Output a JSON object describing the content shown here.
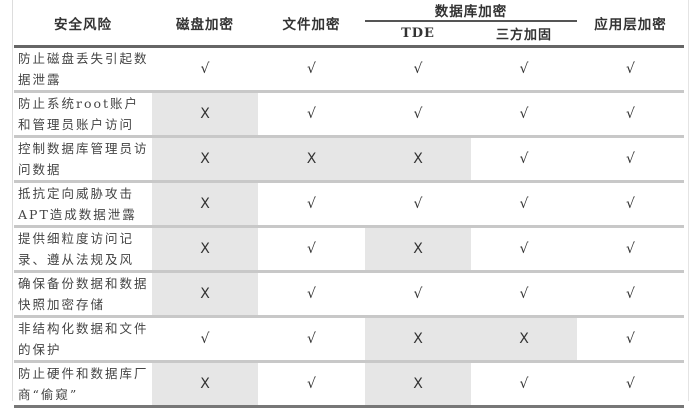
{
  "headers": {
    "risk": "安全风险",
    "disk": "磁盘加密",
    "file": "文件加密",
    "database": "数据库加密",
    "tde": "TDE",
    "third_party": "三方加固",
    "app": "应用层加密"
  },
  "rows": [
    {
      "risk": "防止磁盘丢失引起数据泄露",
      "cells": [
        "√",
        "√",
        "√",
        "√",
        "√"
      ]
    },
    {
      "risk": "防止系统root账户和管理员账户访问",
      "cells": [
        "X",
        "√",
        "√",
        "√",
        "√"
      ]
    },
    {
      "risk": "控制数据库管理员访问数据",
      "cells": [
        "X",
        "X",
        "X",
        "√",
        "√"
      ]
    },
    {
      "risk": "抵抗定向威胁攻击APT造成数据泄露",
      "cells": [
        "X",
        "√",
        "√",
        "√",
        "√"
      ]
    },
    {
      "risk": "提供细粒度访问记录、遵从法规及风",
      "cells": [
        "X",
        "√",
        "X",
        "√",
        "√"
      ]
    },
    {
      "risk": "确保备份数据和数据快照加密存储",
      "cells": [
        "X",
        "√",
        "√",
        "√",
        "√"
      ]
    },
    {
      "risk": "非结构化数据和文件的保护",
      "cells": [
        "√",
        "√",
        "X",
        "X",
        "√"
      ]
    },
    {
      "risk": "防止硬件和数据库厂商“偷窥”",
      "cells": [
        "X",
        "√",
        "X",
        "√",
        "√"
      ]
    }
  ],
  "colors": {
    "shaded_cell": "#e6e6e6",
    "rule": "#666666"
  }
}
